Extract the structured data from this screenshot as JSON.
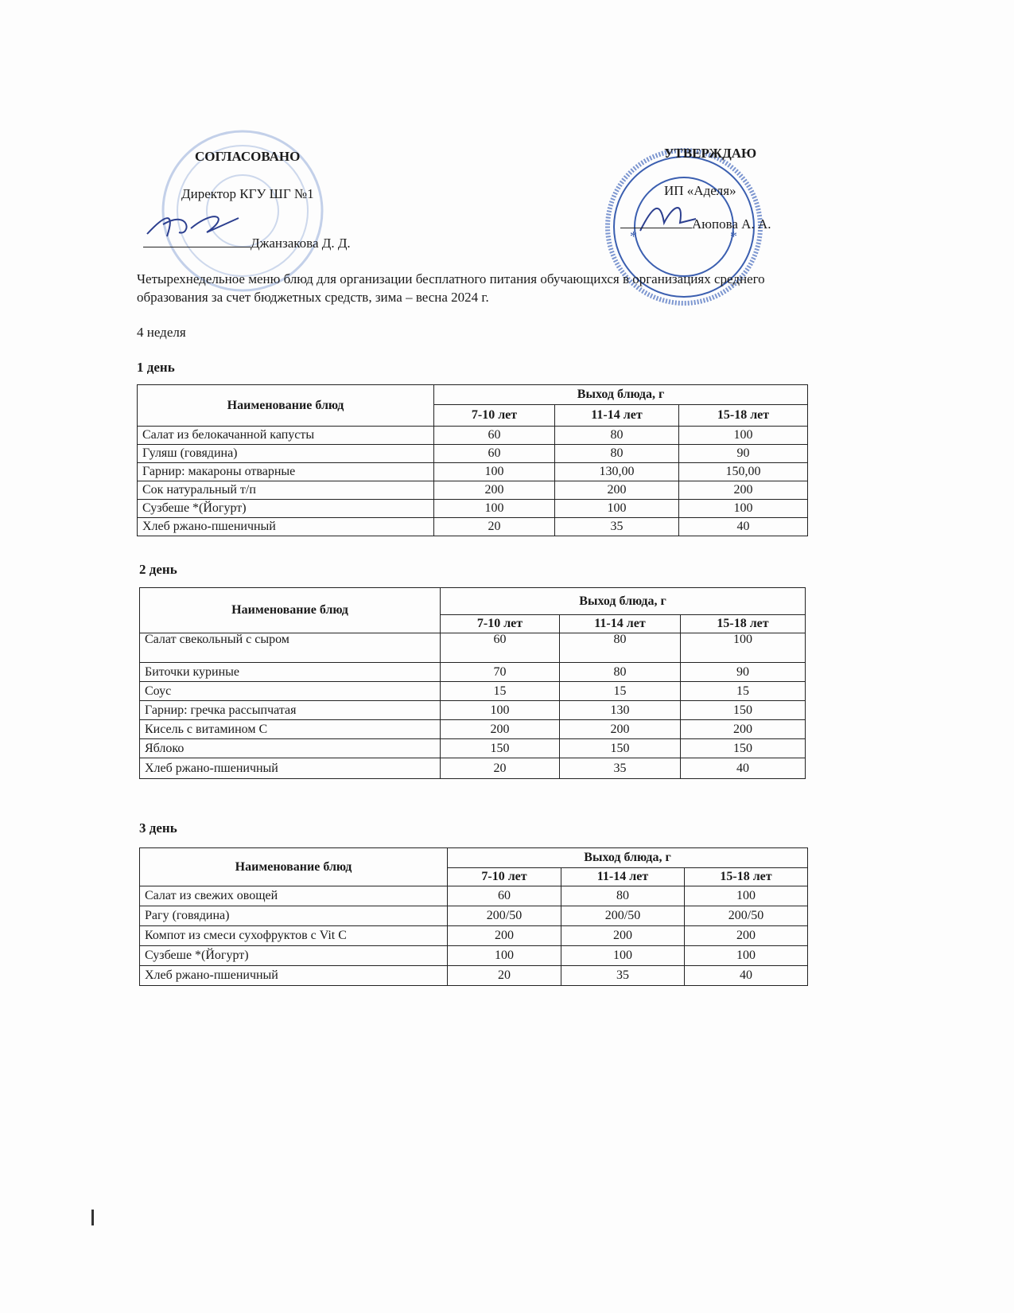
{
  "approval_left": {
    "title": "СОГЛАСОВАНО",
    "position": "Директор КГУ ШГ №1",
    "signer": "Джанзакова Д. Д."
  },
  "approval_right": {
    "title": "УТВЕРЖДАЮ",
    "position": "ИП «Аделя»",
    "signer": "Аюпова А. А."
  },
  "stamp_color": "#3b5fb0",
  "doc_title_line1": "Четырехнедельное меню блюд для организации бесплатного питания обучающихся в организациях среднего",
  "doc_title_line2": "образования за счет бюджетных средств, зима – весна 2024 г.",
  "week": "4 неделя",
  "table_headers": {
    "name": "Наименование блюд",
    "yield": "Выход блюда, г",
    "ages": [
      "7-10 лет",
      "11-14 лет",
      "15-18 лет"
    ]
  },
  "days": [
    {
      "label": "1 день",
      "rows": [
        [
          "Салат из белокачанной капусты",
          "60",
          "80",
          "100"
        ],
        [
          "Гуляш (говядина)",
          "60",
          "80",
          "90"
        ],
        [
          "Гарнир: макароны отварные",
          "100",
          "130,00",
          "150,00"
        ],
        [
          "Сок натуральный т/п",
          "200",
          "200",
          "200"
        ],
        [
          "Сузбеше *(Йогурт)",
          "100",
          "100",
          "100"
        ],
        [
          "Хлеб ржано-пшеничный",
          "20",
          "35",
          "40"
        ]
      ]
    },
    {
      "label": "2 день",
      "rows": [
        [
          "Салат свекольный с сыром",
          "60",
          "80",
          "100"
        ],
        [
          "Биточки куриные",
          "70",
          "80",
          "90"
        ],
        [
          "Соус",
          "15",
          "15",
          "15"
        ],
        [
          "Гарнир: гречка рассыпчатая",
          "100",
          "130",
          "150"
        ],
        [
          "Кисель с витамином С",
          "200",
          "200",
          "200"
        ],
        [
          "Яблоко",
          "150",
          "150",
          "150"
        ],
        [
          "Хлеб ржано-пшеничный",
          "20",
          "35",
          "40"
        ]
      ]
    },
    {
      "label": "3 день",
      "rows": [
        [
          "Салат из свежих овощей",
          "60",
          "80",
          "100"
        ],
        [
          "Рагу (говядина)",
          "200/50",
          "200/50",
          "200/50"
        ],
        [
          "Компот из смеси сухофруктов с Vit C",
          "200",
          "200",
          "200"
        ],
        [
          "Сузбеше *(Йогурт)",
          "100",
          "100",
          "100"
        ],
        [
          "Хлеб ржано-пшеничный",
          "20",
          "35",
          "40"
        ]
      ]
    }
  ]
}
